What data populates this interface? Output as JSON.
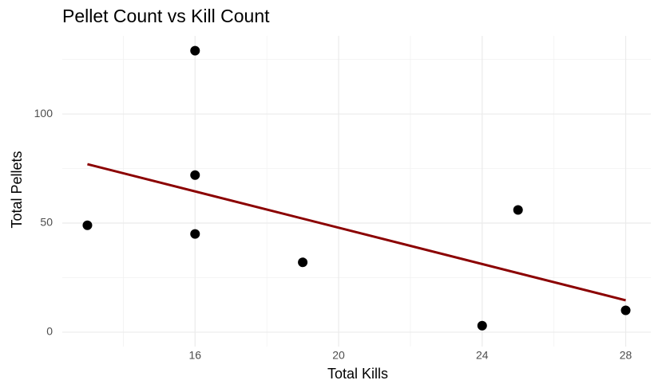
{
  "chart_data": {
    "type": "scatter",
    "title": "Pellet Count vs Kill Count",
    "x_label": "Total Kills",
    "y_label": "Total Pellets",
    "x": [
      13,
      16,
      16,
      16,
      19,
      24,
      25,
      28
    ],
    "values": [
      49,
      129,
      72,
      45,
      32,
      3,
      56,
      10
    ],
    "color": "#000000",
    "trend": {
      "x": [
        13,
        28
      ],
      "values": [
        77,
        14.6
      ],
      "color": "#8b0000"
    },
    "xlim": [
      12.3,
      28.7
    ],
    "ylim": [
      -6.6,
      135.8
    ],
    "xticks": [
      16,
      20,
      24,
      28
    ],
    "yticks": [
      0,
      50,
      100
    ],
    "minor_xticks": [
      14,
      18,
      22,
      26
    ],
    "minor_yticks": [
      25,
      75,
      125
    ],
    "grid": true
  }
}
